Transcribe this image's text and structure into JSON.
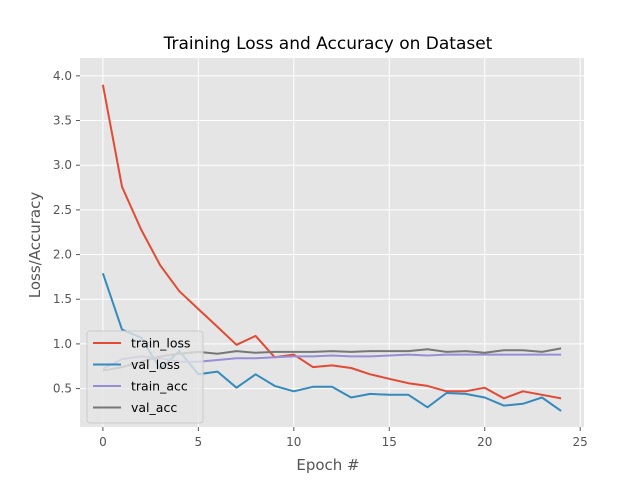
{
  "chart_data": {
    "type": "line",
    "title": "Training Loss and Accuracy on Dataset",
    "xlabel": "Epoch #",
    "ylabel": "Loss/Accuracy",
    "xlim": [
      -1.2,
      25.2
    ],
    "ylim": [
      0.07,
      4.2
    ],
    "xticks": [
      0,
      5,
      10,
      15,
      20,
      25
    ],
    "xtick_labels": [
      "0",
      "5",
      "10",
      "15",
      "20",
      "25"
    ],
    "yticks": [
      0.5,
      1.0,
      1.5,
      2.0,
      2.5,
      3.0,
      3.5,
      4.0
    ],
    "ytick_labels": [
      "0.5",
      "1.0",
      "1.5",
      "2.0",
      "2.5",
      "3.0",
      "3.5",
      "4.0"
    ],
    "grid": true,
    "legend_position": "lower-left",
    "style": {
      "background": "#e5e5e5",
      "grid_color": "#ffffff"
    },
    "x": [
      0,
      1,
      2,
      3,
      4,
      5,
      6,
      7,
      8,
      9,
      10,
      11,
      12,
      13,
      14,
      15,
      16,
      17,
      18,
      19,
      20,
      21,
      22,
      23,
      24
    ],
    "series": [
      {
        "name": "train_loss",
        "color": "#e24a33",
        "values": [
          3.9,
          2.76,
          2.28,
          1.88,
          1.59,
          1.39,
          1.19,
          0.99,
          1.09,
          0.85,
          0.88,
          0.74,
          0.76,
          0.73,
          0.66,
          0.61,
          0.56,
          0.53,
          0.47,
          0.47,
          0.51,
          0.39,
          0.47,
          0.43,
          0.39
        ]
      },
      {
        "name": "val_loss",
        "color": "#348abd",
        "values": [
          1.79,
          1.16,
          1.07,
          0.72,
          0.92,
          0.66,
          0.69,
          0.51,
          0.66,
          0.53,
          0.47,
          0.52,
          0.52,
          0.4,
          0.44,
          0.43,
          0.43,
          0.29,
          0.45,
          0.44,
          0.4,
          0.31,
          0.33,
          0.4,
          0.25
        ]
      },
      {
        "name": "train_acc",
        "color": "#988ed5",
        "values": [
          0.72,
          0.83,
          0.86,
          0.84,
          0.8,
          0.8,
          0.82,
          0.84,
          0.84,
          0.85,
          0.86,
          0.86,
          0.87,
          0.86,
          0.86,
          0.87,
          0.88,
          0.87,
          0.88,
          0.88,
          0.88,
          0.88,
          0.88,
          0.88,
          0.88
        ]
      },
      {
        "name": "val_acc",
        "color": "#777777",
        "values": [
          0.7,
          0.74,
          0.8,
          0.86,
          0.89,
          0.91,
          0.89,
          0.92,
          0.9,
          0.91,
          0.91,
          0.91,
          0.92,
          0.91,
          0.92,
          0.92,
          0.92,
          0.94,
          0.91,
          0.92,
          0.9,
          0.93,
          0.93,
          0.91,
          0.95
        ]
      }
    ]
  }
}
